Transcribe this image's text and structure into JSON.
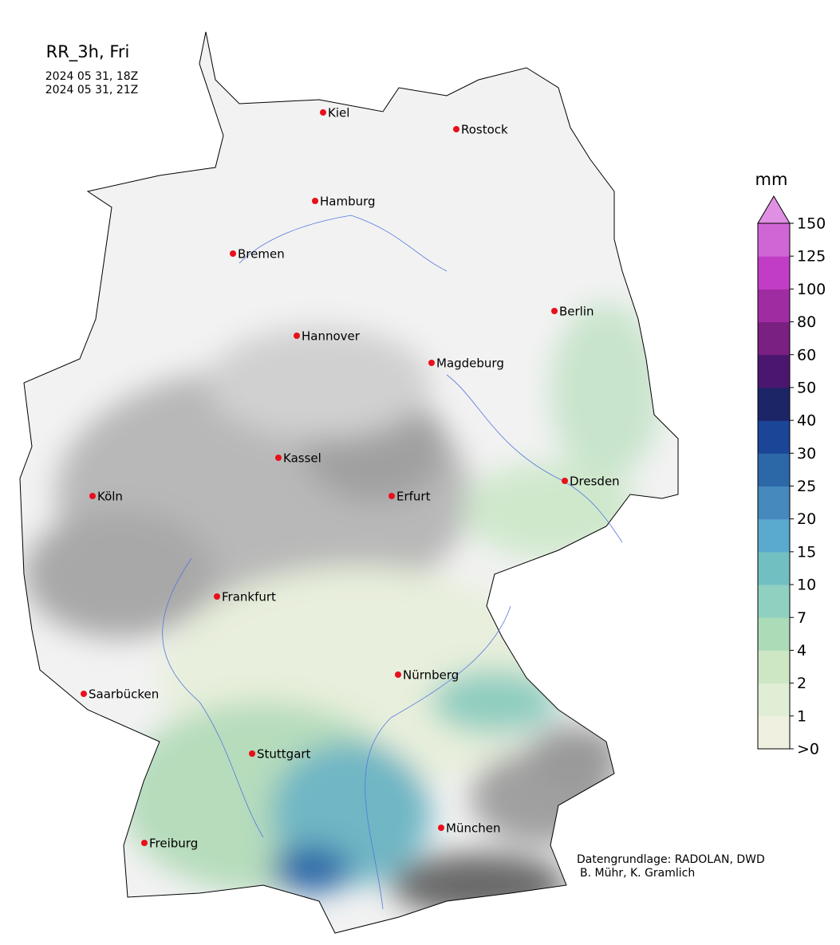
{
  "header": {
    "title": "RR_3h, Fri",
    "valid_from": "2024 05 31, 18Z",
    "valid_to": "2024 05 31, 21Z"
  },
  "cities": [
    "Kiel",
    "Rostock",
    "Hamburg",
    "Bremen",
    "Berlin",
    "Hannover",
    "Magdeburg",
    "Kassel",
    "Dresden",
    "Köln",
    "Erfurt",
    "Frankfurt",
    "Nürnberg",
    "Saarbücken",
    "Stuttgart",
    "München",
    "Freiburg"
  ],
  "colorbar": {
    "unit": "mm",
    "ticks": [
      {
        "value": 0,
        "label": ">0"
      },
      1,
      2,
      4,
      7,
      10,
      15,
      20,
      25,
      30,
      40,
      50,
      60,
      80,
      100,
      125,
      150
    ],
    "colors": [
      "#f0f0e0",
      "#e0eed6",
      "#cde7c4",
      "#acdbb8",
      "#90d0c0",
      "#72bfc2",
      "#5aa9cf",
      "#4589bd",
      "#2c67a8",
      "#1b4596",
      "#1c2566",
      "#4b1670",
      "#7a2082",
      "#a02ca2",
      "#c23dc6",
      "#d066d6"
    ],
    "extend_color": "#e090e2"
  },
  "credit": {
    "line1": "Datengrundlage: RADOLAN, DWD",
    "line2": "B. Mühr, K. Gramlich"
  }
}
